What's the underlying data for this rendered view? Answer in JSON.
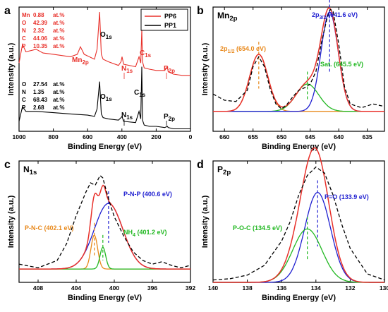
{
  "chart_data": [
    {
      "panel": "a",
      "type": "line",
      "title": "",
      "xlabel": "Binding Energy (eV)",
      "ylabel": "Intensity (a.u.)",
      "xlim": [
        1000,
        0
      ],
      "xticks": [
        "1000",
        "800",
        "600",
        "400",
        "200",
        "0"
      ],
      "legend": {
        "position": "top-right",
        "entries": [
          {
            "name": "PP6",
            "color": "#e8302a"
          },
          {
            "name": "PP1",
            "color": "#000000"
          }
        ]
      },
      "series": [
        {
          "name": "PP6",
          "color": "#e8302a",
          "x": [
            1000,
            980,
            960,
            900,
            860,
            800,
            700,
            660,
            642,
            620,
            560,
            545,
            530,
            520,
            510,
            480,
            420,
            405,
            399,
            390,
            320,
            300,
            290,
            284,
            280,
            270,
            240,
            200,
            150,
            135,
            130,
            100,
            50,
            0
          ],
          "y": [
            0.55,
            0.7,
            0.64,
            0.66,
            0.63,
            0.62,
            0.6,
            0.62,
            0.68,
            0.62,
            0.58,
            0.66,
            0.96,
            0.62,
            0.58,
            0.56,
            0.53,
            0.56,
            0.6,
            0.54,
            0.52,
            0.6,
            0.55,
            0.82,
            0.56,
            0.51,
            0.5,
            0.49,
            0.49,
            0.52,
            0.48,
            0.46,
            0.45,
            0.45
          ]
        },
        {
          "name": "PP1",
          "color": "#000000",
          "x": [
            1000,
            980,
            960,
            900,
            800,
            700,
            600,
            560,
            545,
            530,
            520,
            510,
            480,
            420,
            405,
            399,
            390,
            320,
            300,
            290,
            284,
            280,
            270,
            240,
            200,
            150,
            135,
            130,
            100,
            50,
            0
          ],
          "y": [
            0.08,
            0.2,
            0.16,
            0.16,
            0.15,
            0.14,
            0.13,
            0.12,
            0.18,
            0.4,
            0.14,
            0.11,
            0.1,
            0.09,
            0.11,
            0.12,
            0.08,
            0.07,
            0.16,
            0.1,
            0.52,
            0.09,
            0.05,
            0.04,
            0.04,
            0.03,
            0.04,
            0.03,
            0.02,
            0.02,
            0.02
          ]
        }
      ],
      "peak_labels": [
        {
          "main": "Mn",
          "sub": "2p",
          "color": "#e8302a"
        },
        {
          "main": "O",
          "sub": "1s",
          "color": "#000000"
        },
        {
          "main": "N",
          "sub": "1s",
          "color": "#e8302a"
        },
        {
          "main": "C",
          "sub": "1s",
          "color": "#e8302a"
        },
        {
          "main": "P",
          "sub": "2p",
          "color": "#e8302a"
        },
        {
          "main": "O",
          "sub": "1s",
          "color": "#000000"
        },
        {
          "main": "N",
          "sub": "1s",
          "color": "#000000"
        },
        {
          "main": "C",
          "sub": "1s",
          "color": "#000000"
        },
        {
          "main": "P",
          "sub": "2p",
          "color": "#000000"
        }
      ],
      "composition_pp6": [
        {
          "el": "Mn",
          "val": "0.88",
          "unit": "at.%"
        },
        {
          "el": "O",
          "val": "42.39",
          "unit": "at.%"
        },
        {
          "el": "N",
          "val": "2.32",
          "unit": "at.%"
        },
        {
          "el": "C",
          "val": "44.06",
          "unit": "at.%"
        },
        {
          "el": "P",
          "val": "10.35",
          "unit": "at.%"
        }
      ],
      "composition_pp1": [
        {
          "el": "O",
          "val": "27.54",
          "unit": "at.%"
        },
        {
          "el": "N",
          "val": "1.35",
          "unit": "at.%"
        },
        {
          "el": "C",
          "val": "68.43",
          "unit": "at.%"
        },
        {
          "el": "P",
          "val": "2.68",
          "unit": "at.%"
        }
      ]
    },
    {
      "panel": "b",
      "type": "line",
      "title_main": "Mn",
      "title_sub": "2p",
      "xlabel": "Binding Energy (eV)",
      "ylabel": "Intensity (a.u.)",
      "xlim": [
        662,
        632
      ],
      "xticks": [
        660,
        655,
        650,
        645,
        640,
        635
      ],
      "raw": {
        "x": [
          662,
          660,
          658,
          656,
          655,
          654,
          653,
          652,
          651,
          650,
          649,
          648,
          647,
          646,
          645,
          644,
          643,
          642,
          641.5,
          641,
          640,
          639,
          638,
          636,
          634,
          632
        ],
        "y": [
          0.3,
          0.25,
          0.24,
          0.33,
          0.52,
          0.6,
          0.52,
          0.34,
          0.22,
          0.18,
          0.22,
          0.28,
          0.33,
          0.35,
          0.38,
          0.48,
          0.72,
          0.92,
          0.98,
          0.97,
          0.7,
          0.36,
          0.22,
          0.19,
          0.22,
          0.2
        ]
      },
      "components": [
        {
          "label_main": "2p",
          "label_sub": "1/2",
          "label_rest": " (654.0 eV)",
          "center": 654.0,
          "height": 0.46,
          "width": 1.6,
          "color": "#e8891c"
        },
        {
          "label_main": "Sat. (645.5 eV)",
          "center": 645.5,
          "height": 0.22,
          "width": 2.0,
          "color": "#22b822"
        },
        {
          "label_main": "2p",
          "label_sub": "3/2",
          "label_rest": " (641.6 eV)",
          "center": 641.6,
          "height": 0.8,
          "width": 1.5,
          "color": "#1f1fd0"
        }
      ],
      "baseline": 0.16
    },
    {
      "panel": "c",
      "type": "line",
      "title_main": "N",
      "title_sub": "1s",
      "xlabel": "Binding Energy (eV)",
      "ylabel": "Intensity (a.u.)",
      "xlim": [
        410,
        392
      ],
      "xticks": [
        408,
        404,
        400,
        396,
        392
      ],
      "raw": {
        "x": [
          410,
          408,
          406,
          405,
          404,
          403,
          402.5,
          402,
          401.5,
          401.2,
          401,
          400.5,
          400,
          399,
          398,
          397,
          396,
          395,
          394,
          393,
          392
        ],
        "y": [
          0.15,
          0.12,
          0.18,
          0.32,
          0.55,
          0.74,
          0.82,
          0.8,
          0.88,
          0.86,
          0.8,
          0.66,
          0.54,
          0.38,
          0.25,
          0.18,
          0.15,
          0.17,
          0.14,
          0.12,
          0.14
        ]
      },
      "components": [
        {
          "label_main": "P-N-P (400.6 eV)",
          "center": 400.6,
          "height": 0.54,
          "width": 1.5,
          "color": "#1f1fd0"
        },
        {
          "label_main": "P-N-C (402.1 eV)",
          "center": 402.1,
          "height": 0.28,
          "width": 0.35,
          "color": "#e8891c"
        },
        {
          "label_main": "NH",
          "label_sub": "4",
          "label_rest": " (401.2 eV)",
          "center": 401.2,
          "height": 0.18,
          "width": 0.3,
          "color": "#22b822"
        }
      ],
      "baseline": 0.11
    },
    {
      "panel": "d",
      "type": "line",
      "title_main": "P",
      "title_sub": "2p",
      "xlabel": "Binding Energy (eV)",
      "ylabel": "Intensity (a.u.)",
      "xlim": [
        140,
        130
      ],
      "xticks": [
        140,
        138,
        136,
        134,
        132,
        130
      ],
      "raw": {
        "x": [
          140,
          139,
          138,
          137,
          136,
          135.5,
          135,
          134.5,
          134,
          133.5,
          133,
          132.5,
          132,
          131,
          130
        ],
        "y": [
          0.02,
          0.03,
          0.06,
          0.14,
          0.34,
          0.5,
          0.72,
          0.88,
          0.95,
          0.9,
          0.72,
          0.48,
          0.28,
          0.07,
          0.02
        ]
      },
      "components": [
        {
          "label_main": "P=O (133.9 eV)",
          "center": 133.9,
          "height": 0.74,
          "width": 0.75,
          "color": "#1f1fd0"
        },
        {
          "label_main": "P-O-C (134.5 eV)",
          "center": 134.5,
          "height": 0.44,
          "width": 0.85,
          "color": "#22b822"
        }
      ],
      "baseline": 0.0
    }
  ]
}
